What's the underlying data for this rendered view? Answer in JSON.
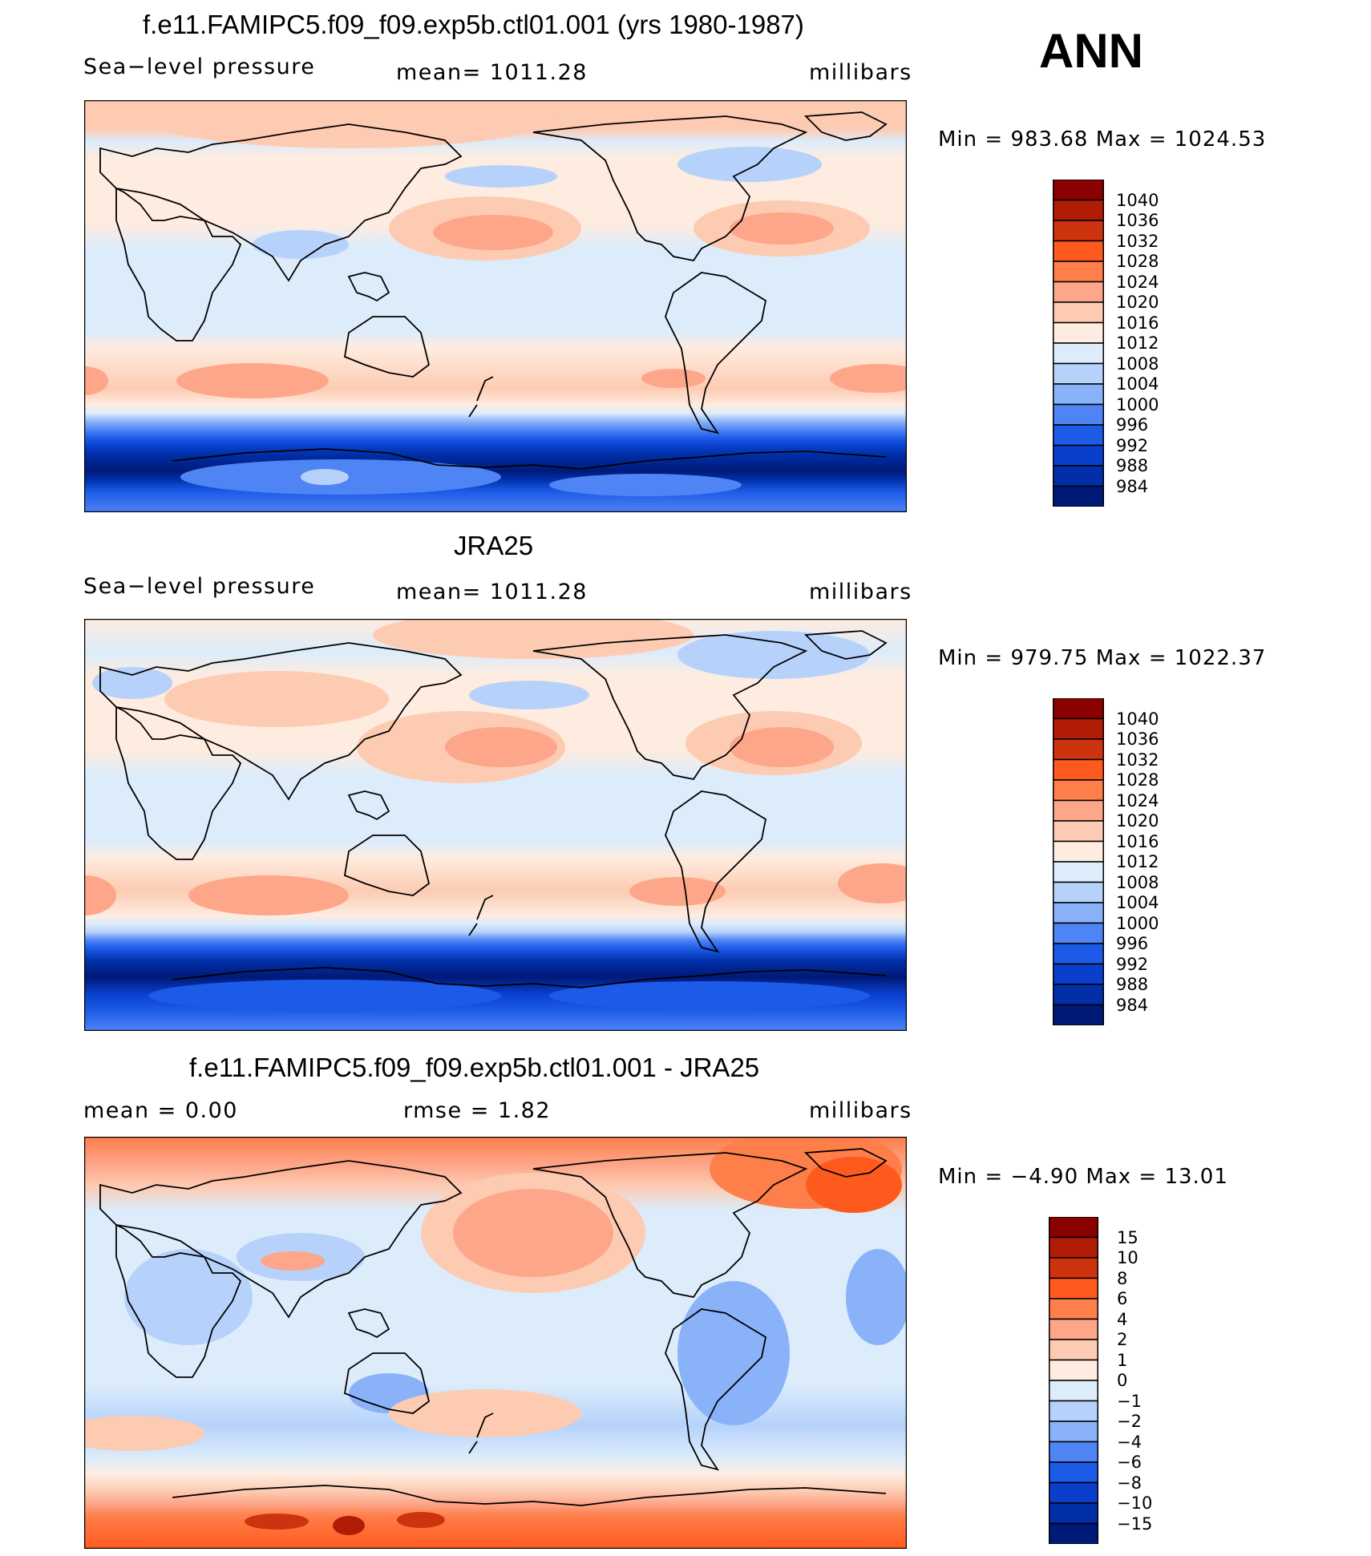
{
  "season": "ANN",
  "chart_data": [
    {
      "type": "heatmap",
      "title": "f.e11.FAMIPC5.f09_f09.exp5b.ctl01.001 (yrs 1980-1987)",
      "left_label": "Sea−level pressure",
      "center_label": "mean=  1011.28",
      "units": "millibars",
      "min_max": "Min  =  983.68  Max  =  1024.53",
      "levels": [
        "1040",
        "1036",
        "1032",
        "1028",
        "1024",
        "1020",
        "1016",
        "1012",
        "1008",
        "1004",
        "1000",
        "996",
        "992",
        "988",
        "984"
      ],
      "colors": [
        "#8b0000",
        "#b01c06",
        "#cc330e",
        "#ff5a1e",
        "#ff7f4a",
        "#fda68a",
        "#fdcbb2",
        "#feece0",
        "#dcecfb",
        "#b6d2fb",
        "#89b2f9",
        "#4f84f5",
        "#1c5be8",
        "#0a3fcc",
        "#002fa8",
        "#001a78"
      ]
    },
    {
      "type": "heatmap",
      "title": "JRA25",
      "left_label": "Sea−level pressure",
      "center_label": "mean=  1011.28",
      "units": "millibars",
      "min_max": "Min  =  979.75  Max  =  1022.37",
      "levels": [
        "1040",
        "1036",
        "1032",
        "1028",
        "1024",
        "1020",
        "1016",
        "1012",
        "1008",
        "1004",
        "1000",
        "996",
        "992",
        "988",
        "984"
      ],
      "colors": [
        "#8b0000",
        "#b01c06",
        "#cc330e",
        "#ff5a1e",
        "#ff7f4a",
        "#fda68a",
        "#fdcbb2",
        "#feece0",
        "#dcecfb",
        "#b6d2fb",
        "#89b2f9",
        "#4f84f5",
        "#1c5be8",
        "#0a3fcc",
        "#002fa8",
        "#001a78"
      ]
    },
    {
      "type": "heatmap",
      "title": "f.e11.FAMIPC5.f09_f09.exp5b.ctl01.001 - JRA25",
      "left_label": "mean  =     0.00",
      "center_label": "rmse  =     1.82",
      "units": "millibars",
      "min_max": "Min  =   −4.90  Max  =    13.01",
      "levels": [
        "15",
        "10",
        "8",
        "6",
        "4",
        "2",
        "1",
        "0",
        "−1",
        "−2",
        "−4",
        "−6",
        "−8",
        "−10",
        "−15"
      ],
      "colors": [
        "#8b0000",
        "#b01c06",
        "#cc330e",
        "#ff5a1e",
        "#ff7f4a",
        "#fda68a",
        "#fdcbb2",
        "#feece0",
        "#dcecfb",
        "#b6d2fb",
        "#89b2f9",
        "#4f84f5",
        "#1c5be8",
        "#0a3fcc",
        "#002fa8",
        "#001a78"
      ]
    }
  ]
}
